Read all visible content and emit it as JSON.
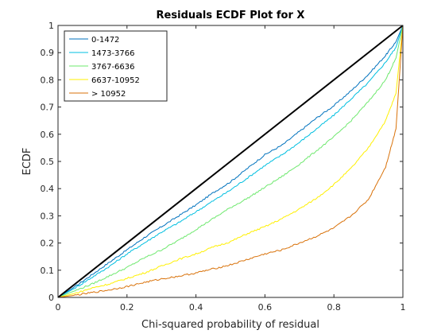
{
  "chart_data": {
    "type": "line",
    "title": "Residuals ECDF Plot for X",
    "xlabel": "Chi-squared probability of residual",
    "ylabel": "ECDF",
    "xlim": [
      0,
      1
    ],
    "ylim": [
      0,
      1
    ],
    "xticks": [
      "0",
      "0.2",
      "0.4",
      "0.6",
      "0.8",
      "1"
    ],
    "yticks": [
      "0",
      "0.1",
      "0.2",
      "0.3",
      "0.4",
      "0.5",
      "0.6",
      "0.7",
      "0.8",
      "0.9",
      "1"
    ],
    "grid": false,
    "legend_position": "top-left",
    "reference_line": {
      "x": [
        0,
        1
      ],
      "y": [
        0,
        1
      ],
      "color": "#000000"
    },
    "series": [
      {
        "name": "0-1472",
        "color": "#0072BD",
        "x": [
          0,
          0.05,
          0.1,
          0.15,
          0.2,
          0.25,
          0.3,
          0.35,
          0.4,
          0.45,
          0.5,
          0.55,
          0.6,
          0.65,
          0.7,
          0.75,
          0.8,
          0.85,
          0.9,
          0.95,
          0.98,
          1
        ],
        "y": [
          0,
          0.04,
          0.085,
          0.13,
          0.175,
          0.22,
          0.26,
          0.3,
          0.34,
          0.385,
          0.425,
          0.475,
          0.525,
          0.56,
          0.61,
          0.66,
          0.705,
          0.76,
          0.82,
          0.89,
          0.94,
          1
        ]
      },
      {
        "name": "1473-3766",
        "color": "#00BFE0",
        "x": [
          0,
          0.05,
          0.1,
          0.15,
          0.2,
          0.25,
          0.3,
          0.35,
          0.4,
          0.45,
          0.5,
          0.55,
          0.6,
          0.65,
          0.7,
          0.75,
          0.8,
          0.85,
          0.9,
          0.95,
          0.98,
          1
        ],
        "y": [
          0,
          0.035,
          0.075,
          0.115,
          0.16,
          0.2,
          0.24,
          0.275,
          0.315,
          0.355,
          0.395,
          0.44,
          0.485,
          0.525,
          0.57,
          0.62,
          0.67,
          0.73,
          0.79,
          0.865,
          0.92,
          1
        ]
      },
      {
        "name": "3767-6636",
        "color": "#6EE86E",
        "x": [
          0,
          0.05,
          0.1,
          0.15,
          0.2,
          0.25,
          0.3,
          0.35,
          0.4,
          0.45,
          0.5,
          0.55,
          0.6,
          0.65,
          0.7,
          0.75,
          0.8,
          0.85,
          0.9,
          0.95,
          0.98,
          1
        ],
        "y": [
          0,
          0.025,
          0.05,
          0.08,
          0.11,
          0.145,
          0.175,
          0.21,
          0.25,
          0.29,
          0.33,
          0.365,
          0.405,
          0.445,
          0.49,
          0.54,
          0.59,
          0.65,
          0.72,
          0.8,
          0.88,
          1
        ]
      },
      {
        "name": "6637-10952",
        "color": "#FFF000",
        "x": [
          0,
          0.05,
          0.1,
          0.15,
          0.2,
          0.25,
          0.3,
          0.35,
          0.4,
          0.45,
          0.5,
          0.55,
          0.6,
          0.65,
          0.7,
          0.75,
          0.8,
          0.85,
          0.9,
          0.95,
          0.98,
          1
        ],
        "y": [
          0,
          0.015,
          0.035,
          0.05,
          0.07,
          0.09,
          0.115,
          0.14,
          0.16,
          0.185,
          0.205,
          0.235,
          0.26,
          0.29,
          0.325,
          0.365,
          0.415,
          0.475,
          0.55,
          0.65,
          0.75,
          1
        ]
      },
      {
        "name": "> 10952",
        "color": "#D9720A",
        "x": [
          0,
          0.05,
          0.1,
          0.15,
          0.2,
          0.25,
          0.3,
          0.35,
          0.4,
          0.45,
          0.5,
          0.55,
          0.6,
          0.65,
          0.7,
          0.75,
          0.8,
          0.85,
          0.9,
          0.95,
          0.98,
          1
        ],
        "y": [
          0,
          0.008,
          0.018,
          0.028,
          0.04,
          0.055,
          0.068,
          0.078,
          0.09,
          0.105,
          0.12,
          0.14,
          0.16,
          0.175,
          0.2,
          0.225,
          0.255,
          0.3,
          0.36,
          0.48,
          0.62,
          1
        ]
      }
    ]
  }
}
